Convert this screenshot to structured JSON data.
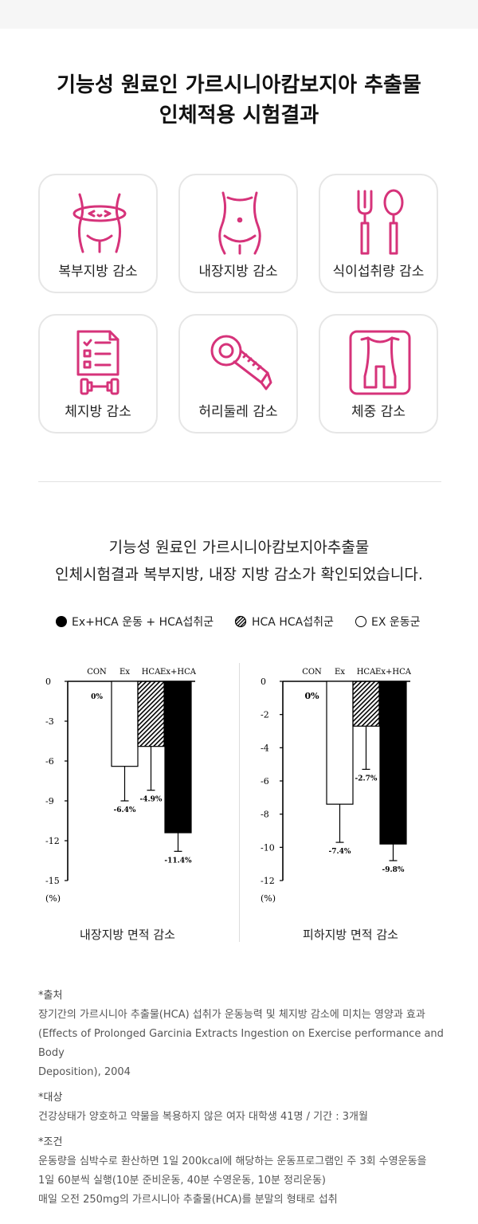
{
  "header": {
    "title_line1": "기능성 원료인 가르시니아캄보지아 추출물",
    "title_line2": "인체적용 시험결과"
  },
  "benefits": [
    {
      "label": "복부지방 감소",
      "icon": "waist-belly-icon"
    },
    {
      "label": "내장지방 감소",
      "icon": "torso-icon"
    },
    {
      "label": "식이섭취량 감소",
      "icon": "fork-spoon-icon"
    },
    {
      "label": "체지방 감소",
      "icon": "checklist-dumbbell-icon"
    },
    {
      "label": "허리둘레 감소",
      "icon": "tape-measure-icon"
    },
    {
      "label": "체중 감소",
      "icon": "body-scale-icon"
    }
  ],
  "summary": {
    "line1": "기능성 원료인 가르시니아캄보지아추출물",
    "line2": "인체시험결과 복부지방, 내장 지방 감소가 확인되었습니다."
  },
  "legend": [
    {
      "label": "Ex+HCA 운동 + HCA섭취군",
      "style": "filled"
    },
    {
      "label": "HCA HCA섭취군",
      "style": "hatched"
    },
    {
      "label": "EX 운동군",
      "style": "empty"
    }
  ],
  "colors": {
    "accent": "#d6337a",
    "bar_black": "#000000",
    "text": "#111111"
  },
  "chart_data": [
    {
      "type": "bar",
      "caption": "내장지방 면적 감소",
      "categories": [
        "CON",
        "Ex",
        "HCA",
        "Ex+HCA"
      ],
      "values": [
        0,
        -6.4,
        -4.9,
        -11.4
      ],
      "errors": [
        0,
        2.6,
        3.3,
        1.4
      ],
      "value_labels": [
        "0%",
        "-6.4%",
        "-4.9%",
        "-11.4%"
      ],
      "ylim": [
        -15,
        0
      ],
      "yticks": [
        "0",
        "-3",
        "-6",
        "-9",
        "-12",
        "-15"
      ],
      "ytick_values": [
        0,
        -3,
        -6,
        -9,
        -12,
        -15
      ],
      "unit_label": "(%)"
    },
    {
      "type": "bar",
      "caption": "피하지방 면적 감소",
      "categories": [
        "CON",
        "Ex",
        "HCA",
        "Ex+HCA"
      ],
      "values": [
        0,
        -7.4,
        -2.7,
        -9.8
      ],
      "errors": [
        0,
        2.3,
        2.6,
        1.0
      ],
      "value_labels": [
        "0%",
        "-7.4%",
        "-2.7%",
        "-9.8%"
      ],
      "ylim": [
        -12,
        0
      ],
      "yticks": [
        "0",
        "-2",
        "-4",
        "-6",
        "-8",
        "-10",
        "-12"
      ],
      "ytick_values": [
        0,
        -2,
        -4,
        -6,
        -8,
        -10,
        -12
      ],
      "unit_label": "(%)"
    }
  ],
  "notes": {
    "source_heading": "*출처",
    "source_line1": "장기간의 가르시니아 추출물(HCA) 섭취가 운동능력 및 체지방 감소에 미치는 영양과 효과",
    "source_line2": "(Effects of Prolonged Garcinia Extracts Ingestion on Exercise performance and Body",
    "source_line3": "Deposition), 2004",
    "subject_heading": "*대상",
    "subject_line": "건강상태가 양호하고 약물을 복용하지 않은 여자 대학생 41명 / 기간 : 3개월",
    "condition_heading": "*조건",
    "condition_line1": "운동량을 심박수로 환산하면 1일 200kcal에 해당하는 운동프로그램인 주 3회 수영운동을",
    "condition_line2": "1일 60분씩 실행(10분 준비운동, 40분 수영운동, 10분 정리운동)",
    "condition_line3": "매일 오전 250mg의 가르시니아 추출물(HCA)를 분말의 형태로 섭취"
  }
}
